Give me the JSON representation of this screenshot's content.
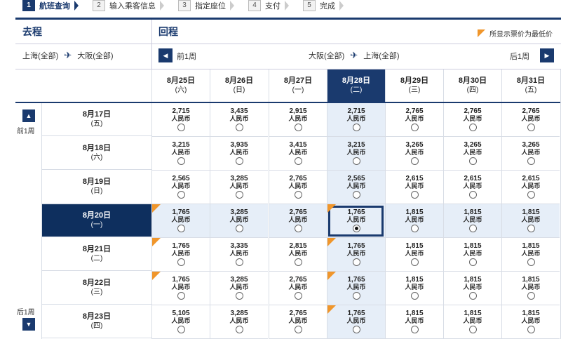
{
  "steps": [
    {
      "num": "1",
      "label": "航班查询",
      "active": true
    },
    {
      "num": "2",
      "label": "输入乘客信息",
      "active": false
    },
    {
      "num": "3",
      "label": "指定座位",
      "active": false
    },
    {
      "num": "4",
      "label": "支付",
      "active": false
    },
    {
      "num": "5",
      "label": "完成",
      "active": false
    }
  ],
  "header": {
    "outbound": "去程",
    "return": "回程"
  },
  "legend": {
    "text": "所显示票价为最低价",
    "color": "#f0962b"
  },
  "outbound_route": {
    "from": "上海(全部)",
    "to": "大阪(全部)",
    "icon": "plane-icon"
  },
  "return_route": {
    "from": "大阪(全部)",
    "to": "上海(全部)",
    "icon": "plane-icon"
  },
  "nav": {
    "prev_label": "前1周",
    "next_label": "后1周",
    "prev_icon": "arrow-left-icon",
    "next_icon": "arrow-right-icon"
  },
  "side_nav": {
    "prev_label": "前1周",
    "next_label": "后1周",
    "up_icon": "arrow-up-icon",
    "down_icon": "arrow-down-icon"
  },
  "return_dates": [
    {
      "date": "8月25日",
      "weekday": "(六)"
    },
    {
      "date": "8月26日",
      "weekday": "(日)"
    },
    {
      "date": "8月27日",
      "weekday": "(一)"
    },
    {
      "date": "8月28日",
      "weekday": "(二)"
    },
    {
      "date": "8月29日",
      "weekday": "(三)"
    },
    {
      "date": "8月30日",
      "weekday": "(四)"
    },
    {
      "date": "8月31日",
      "weekday": "(五)"
    }
  ],
  "selected_return_index": 3,
  "currency": "人民币",
  "rows": [
    {
      "date": "8月17日",
      "weekday": "(五)",
      "prices": [
        "2,715",
        "3,435",
        "2,915",
        "2,715",
        "2,765",
        "2,765",
        "2,765"
      ],
      "lowest": []
    },
    {
      "date": "8月18日",
      "weekday": "(六)",
      "prices": [
        "3,215",
        "3,935",
        "3,415",
        "3,215",
        "3,265",
        "3,265",
        "3,265"
      ],
      "lowest": []
    },
    {
      "date": "8月19日",
      "weekday": "(日)",
      "prices": [
        "2,565",
        "3,285",
        "2,765",
        "2,565",
        "2,615",
        "2,615",
        "2,615"
      ],
      "lowest": []
    },
    {
      "date": "8月20日",
      "weekday": "(一)",
      "prices": [
        "1,765",
        "3,285",
        "2,765",
        "1,765",
        "1,815",
        "1,815",
        "1,815"
      ],
      "lowest": [
        0,
        3
      ]
    },
    {
      "date": "8月21日",
      "weekday": "(二)",
      "prices": [
        "1,765",
        "3,335",
        "2,815",
        "1,765",
        "1,815",
        "1,815",
        "1,815"
      ],
      "lowest": [
        0,
        3
      ]
    },
    {
      "date": "8月22日",
      "weekday": "(三)",
      "prices": [
        "1,765",
        "3,285",
        "2,765",
        "1,765",
        "1,815",
        "1,815",
        "1,815"
      ],
      "lowest": [
        0,
        3
      ]
    },
    {
      "date": "8月23日",
      "weekday": "(四)",
      "prices": [
        "5,105",
        "3,285",
        "2,765",
        "1,765",
        "1,815",
        "1,815",
        "1,815"
      ],
      "lowest": [
        3
      ]
    }
  ],
  "selected_outbound_index": 3,
  "selected_cell": {
    "row": 3,
    "col": 3
  },
  "colors": {
    "navy": "#1a3a6e",
    "highlight": "#e6eef8",
    "accent": "#f0962b"
  }
}
